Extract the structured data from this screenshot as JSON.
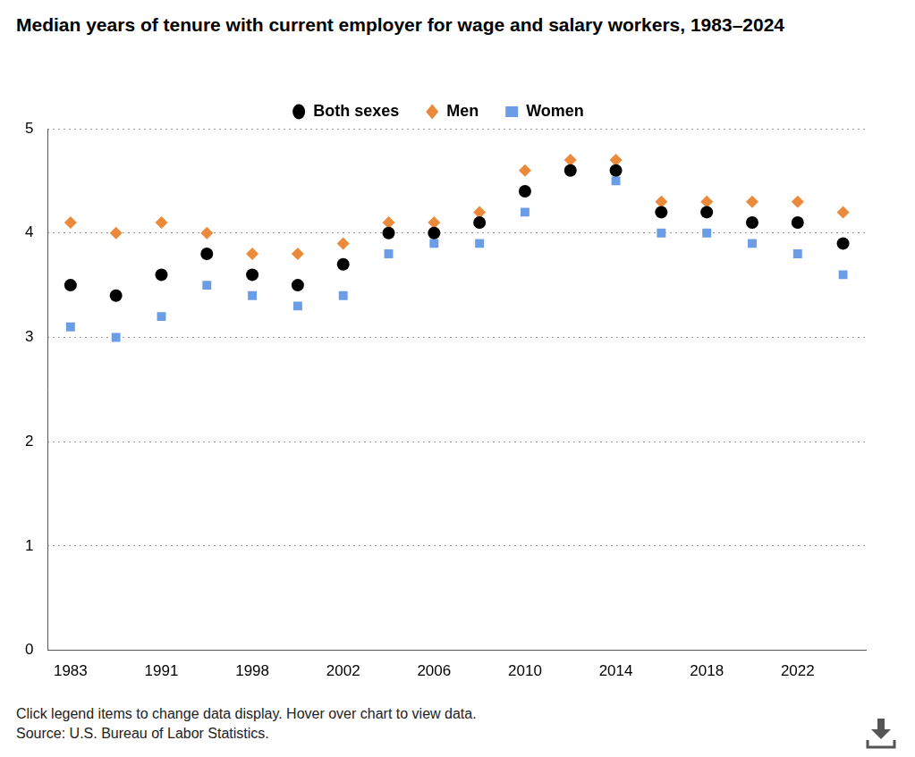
{
  "chart_data": {
    "type": "scatter",
    "title": "Median years of tenure with current employer for wage and salary workers, 1983–2024",
    "notes": [
      "Click legend items to change data display. Hover over chart to view data.",
      "Source: U.S. Bureau of Labor Statistics."
    ],
    "categories": [
      "1983",
      null,
      "1991",
      null,
      "1998",
      null,
      "2002",
      null,
      "2006",
      null,
      "2010",
      null,
      "2014",
      null,
      "2018",
      null,
      "2022",
      null
    ],
    "series": [
      {
        "name": "Both sexes",
        "color": "#000000",
        "marker": "circle",
        "values": [
          3.5,
          3.4,
          3.6,
          3.8,
          3.6,
          3.5,
          3.7,
          4.0,
          4.0,
          4.1,
          4.4,
          4.6,
          4.6,
          4.2,
          4.2,
          4.1,
          4.1,
          3.9
        ]
      },
      {
        "name": "Men",
        "color": "#ec8a3c",
        "marker": "diamond",
        "values": [
          4.1,
          4.0,
          4.1,
          4.0,
          3.8,
          3.8,
          3.9,
          4.1,
          4.1,
          4.2,
          4.6,
          4.7,
          4.7,
          4.3,
          4.3,
          4.3,
          4.3,
          4.2
        ]
      },
      {
        "name": "Women",
        "color": "#6b9de6",
        "marker": "square",
        "values": [
          3.1,
          3.0,
          3.2,
          3.5,
          3.4,
          3.3,
          3.4,
          3.8,
          3.9,
          3.9,
          4.2,
          4.6,
          4.5,
          4.0,
          4.0,
          3.9,
          3.8,
          3.6
        ]
      }
    ],
    "ylim": [
      0,
      5
    ],
    "yticks": [
      0,
      1,
      2,
      3,
      4,
      5
    ],
    "grid": "y",
    "legend": "top"
  }
}
